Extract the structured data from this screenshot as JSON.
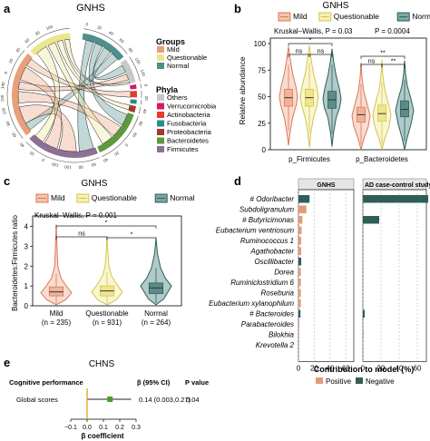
{
  "panel_a": {
    "letter": "a",
    "title": "GNHS",
    "groups_title": "Groups",
    "groups": [
      {
        "label": "Mild",
        "color": "#e8a07a"
      },
      {
        "label": "Questionable",
        "color": "#ece58f"
      },
      {
        "label": "Normal",
        "color": "#4f8f8c"
      }
    ],
    "phyla_title": "Phyla",
    "phyla": [
      {
        "label": "Others",
        "color": "#c8c8c8"
      },
      {
        "label": "Verrucomicrobia",
        "color": "#d6186e"
      },
      {
        "label": "Actinobacteria",
        "color": "#e43d28"
      },
      {
        "label": "Fusobacteria",
        "color": "#2c8a8a"
      },
      {
        "label": "Proteobacteria",
        "color": "#a33a2c"
      },
      {
        "label": "Bacteroidetes",
        "color": "#5d9a3b"
      },
      {
        "label": "Firmicutes",
        "color": "#8e6f96"
      }
    ],
    "ring_ticks": [
      "0",
      "20",
      "40",
      "60",
      "80",
      "100",
      "120",
      "0",
      "20",
      "40",
      "60",
      "80",
      "0",
      "20",
      "40",
      "60",
      "80",
      "100",
      "120",
      "0",
      "20",
      "40",
      "60",
      "80",
      "100",
      "120",
      "140",
      "0",
      "20",
      "40",
      "60",
      "80",
      "100"
    ]
  },
  "panel_b": {
    "letter": "b",
    "title": "GNHS",
    "legend": [
      "Mild",
      "Questionable",
      "Normal"
    ],
    "ylabel": "Relative abundance",
    "yticks": [
      "0",
      "25",
      "50",
      "75",
      "100"
    ],
    "xcats": [
      "p_Firmicutes",
      "p_Bacteroidetes"
    ],
    "stat_left": "Kruskal–Wallis, P = 0.03",
    "stat_right": "P = 0.0004",
    "sig_left": [
      "ns",
      "ns",
      "*"
    ],
    "sig_right": [
      "ns",
      "**",
      "**"
    ]
  },
  "panel_c": {
    "letter": "c",
    "title": "GNHS",
    "legend": [
      "Mild",
      "Questionable",
      "Normal"
    ],
    "stat": "Kruskal–Wallis, P = 0.001",
    "ylabel": "Bacteroidetes:Firmicutes ratio",
    "yticks": [
      "0",
      "1",
      "2",
      "3",
      "4"
    ],
    "sig": [
      "ns",
      "*",
      "*"
    ],
    "xcats": [
      {
        "name": "Mild",
        "n": "(n = 235)"
      },
      {
        "name": "Questionable",
        "n": "(n = 931)"
      },
      {
        "name": "Normal",
        "n": "(n = 264)"
      }
    ]
  },
  "panel_d": {
    "letter": "d",
    "facet_left": "GNHS",
    "facet_right": "AD case-control study",
    "xlabel": "Contribution to model (%)",
    "xticks_left": [
      "0",
      "20",
      "40",
      "60"
    ],
    "xticks_right": [
      "0",
      "20",
      "40",
      "60"
    ],
    "legend_pos": "Positive",
    "legend_neg": "Negative",
    "color_pos": "#e39a7a",
    "color_neg": "#2f5e58"
  },
  "panel_e": {
    "letter": "e",
    "title": "CHNS",
    "col_outcome": "Cognitive performance",
    "col_beta": "β (95% CI)",
    "col_p": "P value",
    "row_label": "Global scores",
    "row_beta": "0.14 (0.003,0.27)",
    "row_p": "0.04",
    "xticks": [
      "−0.1",
      "0.0",
      "0.1",
      "0.2",
      "0.3"
    ],
    "xlabel": "β coefficient"
  },
  "chart_data": [
    {
      "type": "bar",
      "panel": "d",
      "facet": "GNHS",
      "categories": [
        "# Odoribacter",
        "Subdoligranulum",
        "# Butyricimonas",
        "Eubacterium ventriosum",
        "Ruminococcus 1",
        "Agathobacter",
        "Oscillibacter",
        "Dorea",
        "Ruminiclostridium 6",
        "Roseburia",
        "Eubacterium xylanophilum",
        "# Bacteroides",
        "Parabacteroides",
        "Bilokhia",
        "Krevotella 2"
      ],
      "values": [
        14,
        10,
        5,
        4,
        3.5,
        3.5,
        3.5,
        3,
        3,
        3,
        3,
        2.5,
        1,
        0,
        0
      ],
      "direction": [
        "Negative",
        "Positive",
        "Positive",
        "Positive",
        "Positive",
        "Positive",
        "Negative",
        "Positive",
        "Positive",
        "Positive",
        "Positive",
        "Negative",
        "Positive",
        "Positive",
        "Positive"
      ],
      "xlim": [
        0,
        70
      ]
    },
    {
      "type": "bar",
      "panel": "d",
      "facet": "AD case-control study",
      "categories": [
        "# Odoribacter",
        "Subdoligranulum",
        "# Butyricimonas",
        "Eubacterium ventriosum",
        "Ruminococcus 1",
        "Agathobacter",
        "Oscillibacter",
        "Dorea",
        "Ruminiclostridium 6",
        "Roseburia",
        "Eubacterium xylanophilum",
        "# Bacteroides",
        "Parabacteroides",
        "Bilokhia",
        "Krevotella 2"
      ],
      "values": [
        72,
        0,
        18,
        0,
        0,
        0,
        0,
        0,
        0,
        0,
        0,
        2,
        0,
        1,
        0
      ],
      "direction": [
        "Negative",
        "Positive",
        "Negative",
        "Positive",
        "Positive",
        "Positive",
        "Positive",
        "Positive",
        "Positive",
        "Positive",
        "Positive",
        "Negative",
        "Positive",
        "Positive",
        "Positive"
      ],
      "xlim": [
        0,
        70
      ]
    },
    {
      "type": "scatter",
      "panel": "e",
      "series": [
        {
          "x": [
            0.14
          ],
          "ci": [
            0.003,
            0.27
          ],
          "y": [
            "Global scores"
          ]
        }
      ],
      "xlim": [
        -0.1,
        0.3
      ]
    },
    {
      "type": "box",
      "panel": "b",
      "categories": [
        "p_Firmicutes",
        "p_Bacteroidetes"
      ],
      "series": [
        {
          "name": "Mild",
          "medians": [
            49,
            33
          ]
        },
        {
          "name": "Questionable",
          "medians": [
            49,
            34
          ]
        },
        {
          "name": "Normal",
          "medians": [
            47,
            38
          ]
        }
      ],
      "ylim": [
        0,
        100
      ]
    },
    {
      "type": "box",
      "panel": "c",
      "categories": [
        "Mild",
        "Questionable",
        "Normal"
      ],
      "values": [
        0.7,
        0.75,
        0.9
      ],
      "ylim": [
        0,
        4.3
      ]
    }
  ]
}
